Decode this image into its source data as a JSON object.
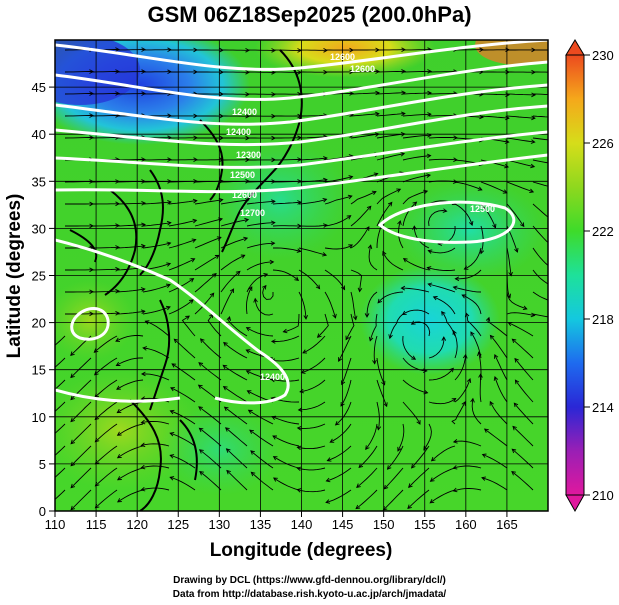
{
  "title": "GSM 06Z18Sep2025 (200.0hPa)",
  "credits": [
    "Drawing by DCL (https://www.gfd-dennou.org/library/dcl/)",
    "Data from http://database.rish.kyoto-u.ac.jp/arch/jmadata/"
  ],
  "chart_data": {
    "type": "heatmap",
    "title": "GSM 06Z18Sep2025 (200.0hPa)",
    "xlabel": "Longitude (degrees)",
    "ylabel": "Latitude  (degrees)",
    "xlim": [
      110,
      170
    ],
    "ylim": [
      0,
      50
    ],
    "x_ticks": [
      110,
      115,
      120,
      125,
      130,
      135,
      140,
      145,
      150,
      155,
      160,
      165
    ],
    "y_ticks": [
      0,
      5,
      10,
      15,
      20,
      25,
      30,
      35,
      40,
      45
    ],
    "grid": true,
    "colorbar": {
      "min": 210,
      "max": 230,
      "ticks": [
        210,
        214,
        218,
        222,
        226,
        230
      ],
      "colors": [
        "#e0189e",
        "#9a1fb5",
        "#2a27d6",
        "#1e6bef",
        "#14c8df",
        "#1ee19a",
        "#3edb2a",
        "#8fd81e",
        "#d6dd1a",
        "#f5a81b",
        "#ec4a1f"
      ]
    },
    "contour_labels": [
      "12600",
      "12600",
      "12400",
      "12400",
      "12300",
      "12500",
      "12600",
      "12700",
      "12500",
      "12400"
    ]
  }
}
